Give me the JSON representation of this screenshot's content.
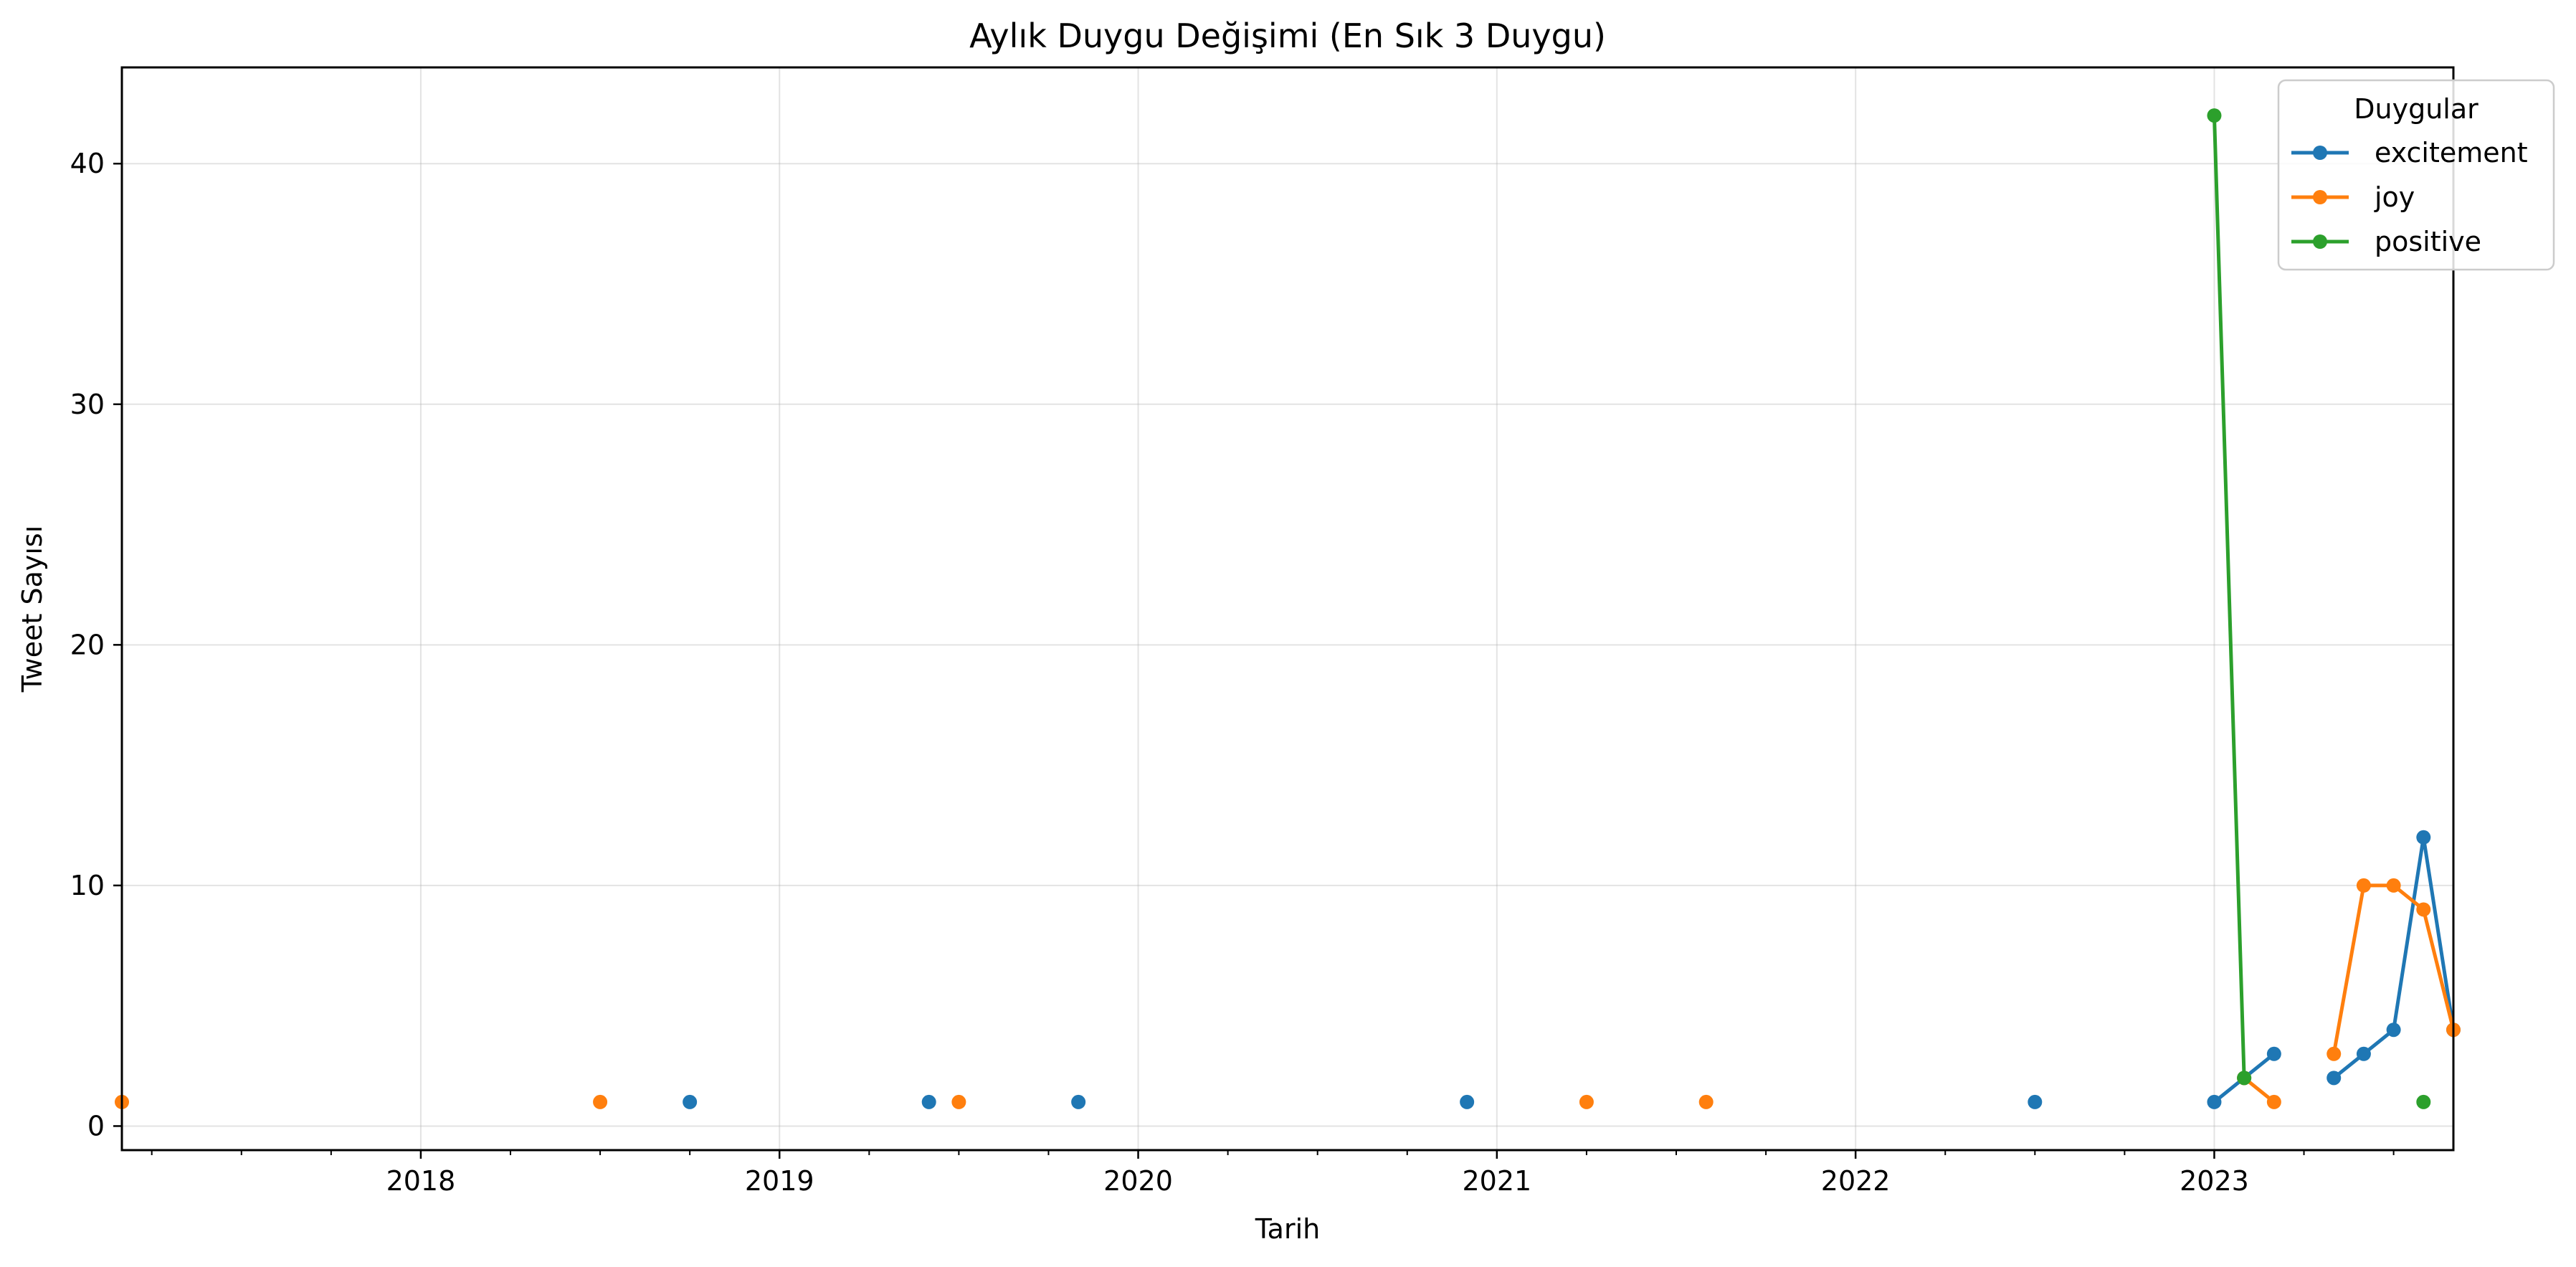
{
  "chart_data": {
    "type": "line",
    "title": "Aylık Duygu Değişimi (En Sık 3 Duygu)",
    "xlabel": "Tarih",
    "ylabel": "Tweet Sayısı",
    "xlim": [
      "2017-03",
      "2023-09"
    ],
    "ylim": [
      -1,
      44
    ],
    "x_ticks": [
      "2018",
      "2019",
      "2020",
      "2021",
      "2022",
      "2023"
    ],
    "y_ticks": [
      0,
      10,
      20,
      30,
      40
    ],
    "grid": true,
    "legend": {
      "title": "Duygular",
      "placement": "top-right"
    },
    "series": [
      {
        "name": "excitement",
        "color": "#1f77b4",
        "points": [
          {
            "x": "2018-10",
            "y": 1
          },
          {
            "x": "2019-06",
            "y": 1
          },
          {
            "x": "2019-11",
            "y": 1
          },
          {
            "x": "2020-12",
            "y": 1
          },
          {
            "x": "2022-07",
            "y": 1
          },
          {
            "x": "2023-01",
            "y": 1
          },
          {
            "x": "2023-02",
            "y": 2
          },
          {
            "x": "2023-03",
            "y": 3
          },
          {
            "x": "2023-05",
            "y": 2
          },
          {
            "x": "2023-06",
            "y": 3
          },
          {
            "x": "2023-07",
            "y": 4
          },
          {
            "x": "2023-08",
            "y": 12
          },
          {
            "x": "2023-09",
            "y": 4
          }
        ]
      },
      {
        "name": "joy",
        "color": "#ff7f0e",
        "points": [
          {
            "x": "2017-03",
            "y": 1
          },
          {
            "x": "2018-07",
            "y": 1
          },
          {
            "x": "2019-07",
            "y": 1
          },
          {
            "x": "2021-04",
            "y": 1
          },
          {
            "x": "2021-08",
            "y": 1
          },
          {
            "x": "2023-02",
            "y": 2
          },
          {
            "x": "2023-03",
            "y": 1
          },
          {
            "x": "2023-05",
            "y": 3
          },
          {
            "x": "2023-06",
            "y": 10
          },
          {
            "x": "2023-07",
            "y": 10
          },
          {
            "x": "2023-08",
            "y": 9
          },
          {
            "x": "2023-09",
            "y": 4
          }
        ]
      },
      {
        "name": "positive",
        "color": "#2ca02c",
        "points": [
          {
            "x": "2023-01",
            "y": 42
          },
          {
            "x": "2023-02",
            "y": 2
          },
          {
            "x": "2023-08",
            "y": 1
          }
        ]
      }
    ]
  }
}
